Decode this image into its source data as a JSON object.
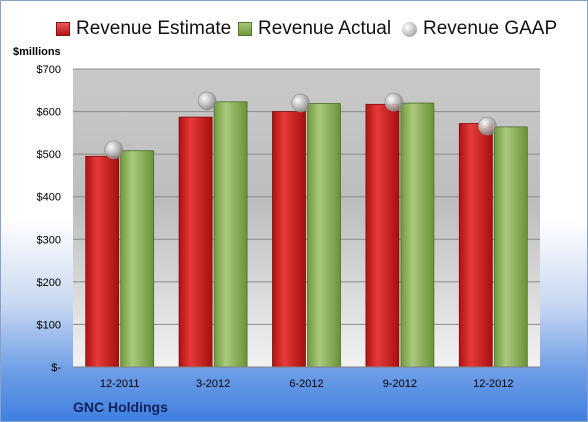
{
  "chart_data": {
    "type": "bar",
    "title": "",
    "xlabel": "",
    "ylabel": "",
    "unit_label": "$millions",
    "company": "GNC Holdings",
    "categories": [
      "12-2011",
      "3-2012",
      "6-2012",
      "9-2012",
      "12-2012"
    ],
    "ylim": [
      0,
      700
    ],
    "yticks": [
      0,
      100,
      200,
      300,
      400,
      500,
      600,
      700
    ],
    "ytick_labels": [
      "$-",
      "$100",
      "$200",
      "$300",
      "$400",
      "$500",
      "$600",
      "$700"
    ],
    "grid": true,
    "legend_position": "top",
    "series": [
      {
        "name": "Revenue Estimate",
        "type": "bar",
        "color": "#c81e1e",
        "values": [
          495,
          587,
          600,
          617,
          572
        ]
      },
      {
        "name": "Revenue Actual",
        "type": "bar",
        "color": "#8db15a",
        "values": [
          508,
          623,
          619,
          620,
          564
        ]
      },
      {
        "name": "Revenue GAAP",
        "type": "marker",
        "color": "#b0b0b0",
        "values": [
          510,
          625,
          620,
          622,
          566
        ]
      }
    ]
  }
}
